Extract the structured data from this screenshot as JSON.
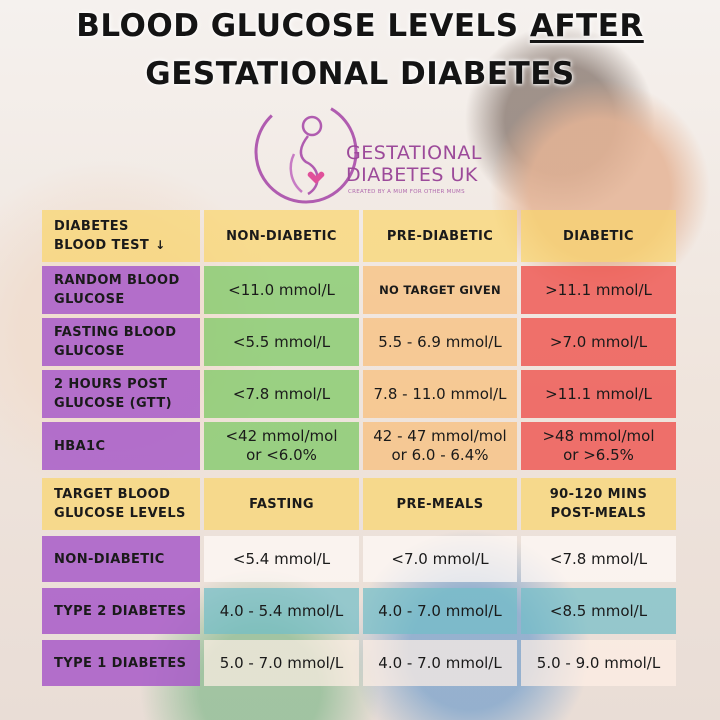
{
  "title": {
    "line1_pre": "BLOOD GLUCOSE LEVELS ",
    "line1_underlined": "AFTER",
    "line2": "GESTATIONAL DIABETES"
  },
  "logo": {
    "line1": "GESTATIONAL",
    "line2": "DIABETES UK",
    "tagline": "CREATED BY A MUM FOR OTHER MUMS",
    "color": "#9c4a9a"
  },
  "table1": {
    "header": {
      "label_line1": "DIABETES",
      "label_line2": "BLOOD TEST",
      "arrow": "↓",
      "cols": [
        "NON-DIABETIC",
        "PRE-DIABETIC",
        "DIABETIC"
      ]
    },
    "rows": [
      {
        "label_line1": "RANDOM BLOOD",
        "label_line2": "GLUCOSE",
        "values": [
          "<11.0 mmol/L",
          "NO TARGET GIVEN",
          ">11.1 mmol/L"
        ]
      },
      {
        "label_line1": "FASTING BLOOD",
        "label_line2": "GLUCOSE",
        "values": [
          "<5.5 mmol/L",
          "5.5 - 6.9 mmol/L",
          ">7.0 mmol/L"
        ]
      },
      {
        "label_line1": "2 HOURS POST",
        "label_line2": "GLUCOSE (GTT)",
        "values": [
          "<7.8 mmol/L",
          "7.8 - 11.0 mmol/L",
          ">11.1 mmol/L"
        ]
      },
      {
        "label_line1": "HBA1C",
        "label_line2": "",
        "values_line1": [
          "<42 mmol/mol",
          "42 - 47 mmol/mol",
          ">48 mmol/mol"
        ],
        "values_line2": [
          "or <6.0%",
          "or 6.0 - 6.4%",
          "or >6.5%"
        ]
      }
    ]
  },
  "table2": {
    "header": {
      "label_line1": "TARGET BLOOD",
      "label_line2": "GLUCOSE LEVELS",
      "col1": "FASTING",
      "col2": "PRE-MEALS",
      "col3_line1": "90-120 MINS",
      "col3_line2": "POST-MEALS"
    },
    "rows": [
      {
        "label": "NON-DIABETIC",
        "values": [
          "<5.4 mmol/L",
          "<7.0 mmol/L",
          "<7.8 mmol/L"
        ]
      },
      {
        "label": "TYPE 2 DIABETES",
        "values": [
          "4.0 - 5.4 mmol/L",
          "4.0 - 7.0 mmol/L",
          "<8.5 mmol/L"
        ]
      },
      {
        "label": "TYPE 1 DIABETES",
        "values": [
          "5.0 - 7.0 mmol/L",
          "4.0 - 7.0 mmol/L",
          "5.0 - 9.0 mmol/L"
        ]
      }
    ]
  },
  "colors": {
    "header": "#fad66e",
    "label": "#aa5fc8",
    "non_diabetic": "#78c85f",
    "pre_diabetic": "#f8be78",
    "diabetic": "#ee5550",
    "type2": "#73bec8"
  }
}
